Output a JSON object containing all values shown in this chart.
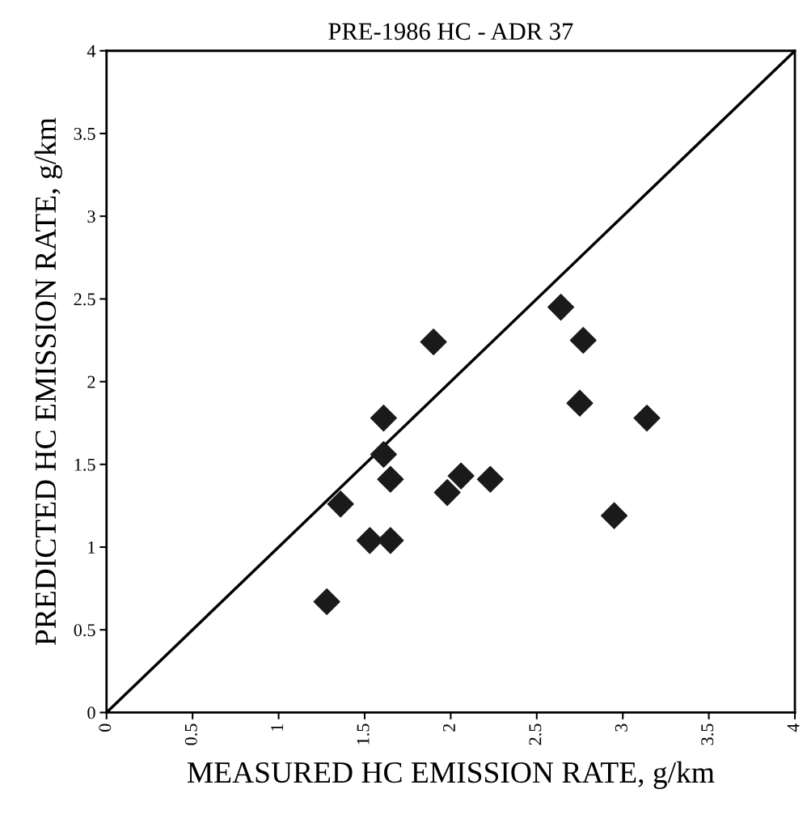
{
  "chart_data": {
    "type": "scatter",
    "title": "PRE-1986 HC - ADR 37",
    "xlabel": "MEASURED HC EMISSION RATE, g/km",
    "ylabel": "PREDICTED HC EMISSION RATE, g/km",
    "xlim": [
      0,
      4
    ],
    "ylim": [
      0,
      4
    ],
    "xticks": [
      0,
      0.5,
      1,
      1.5,
      2,
      2.5,
      3,
      3.5,
      4
    ],
    "yticks": [
      0,
      0.5,
      1,
      1.5,
      2,
      2.5,
      3,
      3.5,
      4
    ],
    "grid": false,
    "legend": false,
    "marker": "diamond",
    "series": [
      {
        "color": "#1a1a1a",
        "x": [
          1.9,
          1.61,
          1.61,
          1.65,
          2.06,
          1.98,
          2.23,
          1.36,
          1.53,
          1.65,
          1.28,
          2.64,
          2.77,
          2.75,
          3.14,
          2.95
        ],
        "values": [
          2.24,
          1.78,
          1.56,
          1.41,
          1.43,
          1.33,
          1.41,
          1.26,
          1.04,
          1.04,
          0.67,
          2.45,
          2.25,
          1.87,
          1.78,
          1.19
        ]
      },
      {
        "type": "line",
        "color": "#000000",
        "x": [
          0,
          4
        ],
        "values": [
          0,
          4
        ],
        "marker": "none",
        "line_style": "solid"
      }
    ]
  }
}
